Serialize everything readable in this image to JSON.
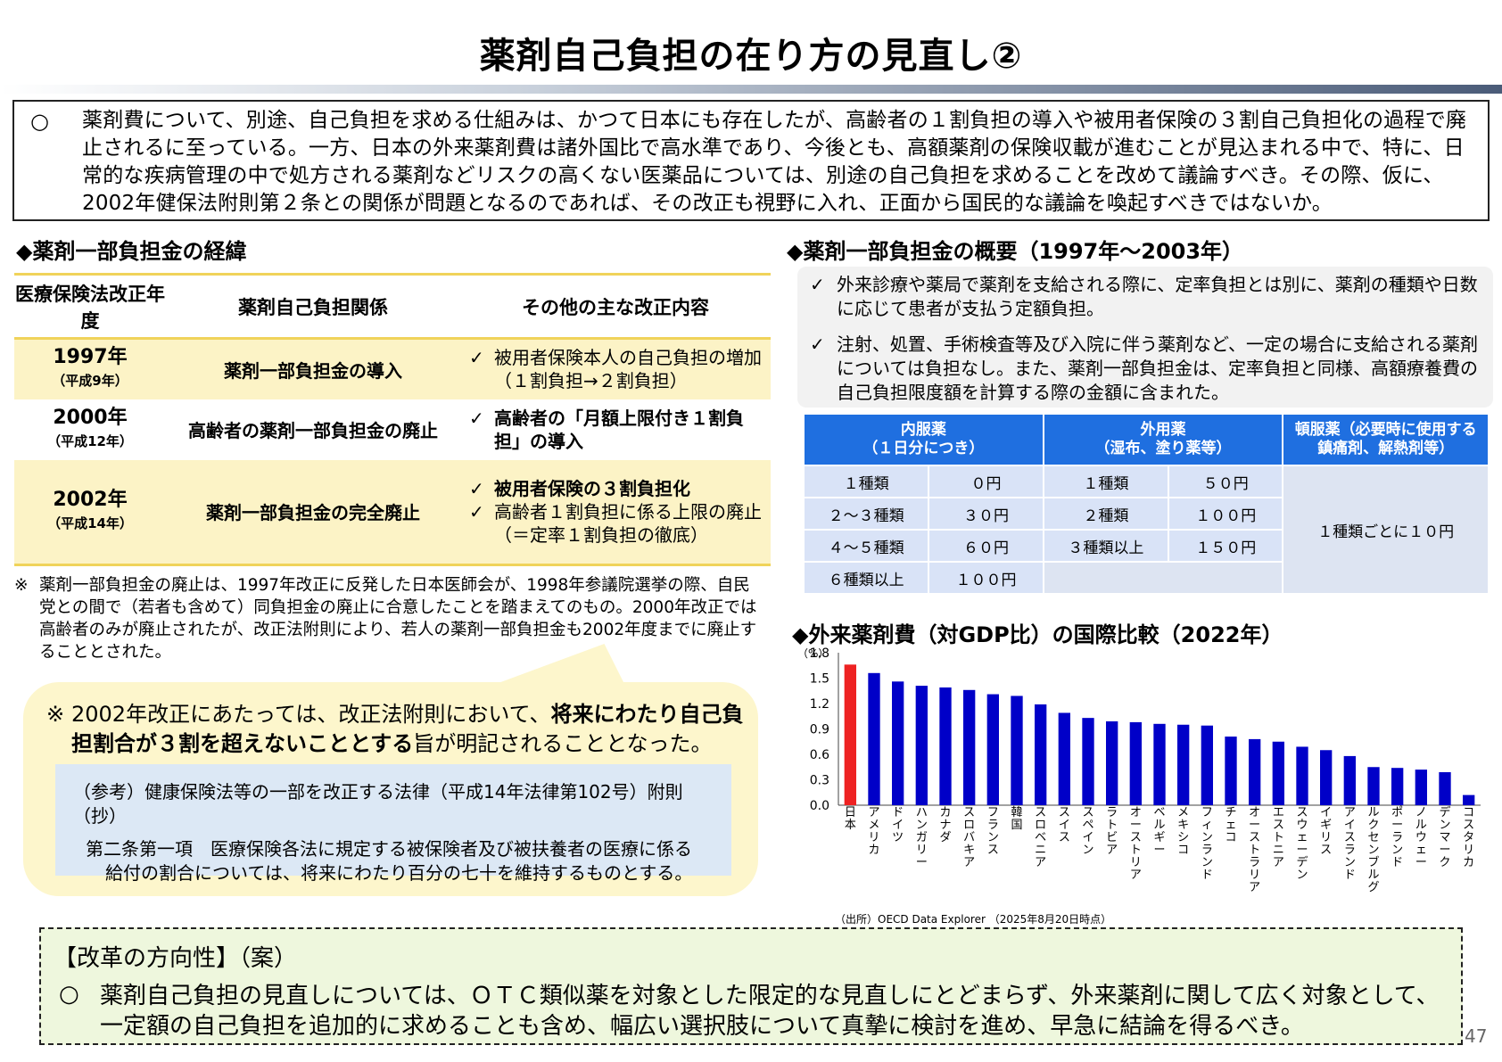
{
  "title": "薬剤自己負担の在り方の見直し②",
  "intro": {
    "mark": "○",
    "text": "薬剤費について、別途、自己負担を求める仕組みは、かつて日本にも存在したが、高齢者の１割負担の導入や被用者保険の３割自己負担化の過程で廃止されるに至っている。一方、日本の外来薬剤費は諸外国比で高水準であり、今後とも、高額薬剤の保険収載が進むことが見込まれる中で、特に、日常的な疾病管理の中で処方される薬剤などリスクの高くない医薬品については、別途の自己負担を求めることを改めて議論すべき。その際、仮に、2002年健保法附則第２条との関係が問題となるのであれば、その改正も視野に入れ、正面から国民的な議論を喚起すべきではないか。"
  },
  "history": {
    "heading": "◆薬剤一部負担金の経緯",
    "headers": {
      "year": "医療保険法改正年度",
      "relation": "薬剤自己負担関係",
      "other": "その他の主な改正内容"
    },
    "rows": [
      {
        "year": "1997年",
        "era": "（平成9年）",
        "relation": "薬剤一部負担金の導入",
        "items": [
          {
            "text": "被用者保険本人の自己負担の増加（１割負担→２割負担）",
            "bold": false
          }
        ]
      },
      {
        "year": "2000年",
        "era": "（平成12年）",
        "relation": "高齢者の薬剤一部負担金の廃止",
        "items": [
          {
            "text": "高齢者の「月額上限付き１割負担」の導入",
            "bold": true
          }
        ]
      },
      {
        "year": "2002年",
        "era": "（平成14年）",
        "relation": "薬剤一部負担金の完全廃止",
        "items": [
          {
            "text": "被用者保険の３割負担化",
            "bold": true
          },
          {
            "text": "高齢者１割負担に係る上限の廃止（＝定率１割負担の徹底）",
            "bold": false
          }
        ]
      }
    ],
    "check": "✓",
    "note_mark": "※",
    "note": "薬剤一部負担金の廃止は、1997年改正に反発した日本医師会が、1998年参議院選挙の際、自民党との間で（若者も含めて）同負担金の廃止に合意したことを踏まえてのもの。2000年改正では高齢者のみが廃止されたが、改正法附則により、若人の薬剤一部負担金も2002年度までに廃止することとされた。"
  },
  "callout": {
    "mark": "※",
    "text_pre": "2002年改正にあたっては、改正法附則において、",
    "text_bold": "将来にわたり自己負担割合が３割を超えないこととする",
    "text_post": "旨が明記されることとなった。",
    "ref_title": "（参考）健康保険法等の一部を改正する法律（平成14年法律第102号）附則（抄）",
    "ref_line1": "第二条第一項　医療保険各法に規定する被保険者及び被扶養者の医療に係る",
    "ref_line2": "給付の割合については、将来にわたり百分の七十を維持するものとする。"
  },
  "overview": {
    "heading": "◆薬剤一部負担金の概要（1997年～2003年）",
    "items": [
      "外来診療や薬局で薬剤を支給される際に、定率負担とは別に、薬剤の種類や日数に応じて患者が支払う定額負担。",
      "注射、処置、手術検査等及び入院に伴う薬剤など、一定の場合に支給される薬剤については負担なし。また、薬剤一部負担金は、定率負担と同様、高額療養費の自己負担限度額を計算する際の金額に含まれた。"
    ]
  },
  "fee_table": {
    "headers": [
      "内服薬\n（１日分につき）",
      "外用薬\n（湿布、塗り薬等）",
      "頓服薬（必要時に使用する\n鎮痛剤、解熱剤等）"
    ],
    "rows": [
      {
        "oral_kind": "１種類",
        "oral_fee": "０円",
        "ext_kind": "１種類",
        "ext_fee": "５０円"
      },
      {
        "oral_kind": "２～３種類",
        "oral_fee": "３０円",
        "ext_kind": "２種類",
        "ext_fee": "１００円"
      },
      {
        "oral_kind": "４～５種類",
        "oral_fee": "６０円",
        "ext_kind": "３種類以上",
        "ext_fee": "１５０円"
      },
      {
        "oral_kind": "６種類以上",
        "oral_fee": "１００円",
        "ext_kind": "",
        "ext_fee": ""
      }
    ],
    "tonpuku": "１種類ごとに１０円"
  },
  "chart_heading": "◆外来薬剤費（対GDP比）の国際比較（2022年）",
  "chart_data": {
    "type": "bar",
    "title": "外来薬剤費（対GDP比）の国際比較（2022年）",
    "ylabel": "（%）",
    "ylim": [
      0,
      1.8
    ],
    "yticks": [
      "0.0",
      "0.3",
      "0.6",
      "0.9",
      "1.2",
      "1.5",
      "1.8"
    ],
    "highlight_color": "#ee2222",
    "bar_color": "#0000c8",
    "categories": [
      "日本",
      "アメリカ",
      "ドイツ",
      "ハンガリー",
      "カナダ",
      "スロバキア",
      "フランス",
      "韓国",
      "スロベニア",
      "スイス",
      "スペイン",
      "ラトビア",
      "オーストリア",
      "ベルギー",
      "メキシコ",
      "フィンランド",
      "チェコ",
      "オーストラリア",
      "エストニア",
      "スウェーデン",
      "イギリス",
      "アイスランド",
      "ルクセンブルグ",
      "ポーランド",
      "ノルウェー",
      "デンマーク",
      "コスタリカ"
    ],
    "values": [
      1.66,
      1.56,
      1.46,
      1.41,
      1.39,
      1.36,
      1.31,
      1.29,
      1.19,
      1.09,
      1.03,
      0.99,
      0.98,
      0.96,
      0.95,
      0.94,
      0.81,
      0.78,
      0.75,
      0.69,
      0.65,
      0.58,
      0.45,
      0.44,
      0.42,
      0.39,
      0.12
    ]
  },
  "source": "（出所）OECD Data Explorer （2025年8月20日時点）",
  "reform": {
    "heading": "【改革の方向性】（案）",
    "mark": "○",
    "text": "薬剤自己負担の見直しについては、ＯＴＣ類似薬を対象とした限定的な見直しにとどまらず、外来薬剤に関して広く対象として、一定額の自己負担を追加的に求めることも含め、幅広い選択肢について真摯に検討を進め、早急に結論を得るべき。"
  },
  "page_number": "47"
}
